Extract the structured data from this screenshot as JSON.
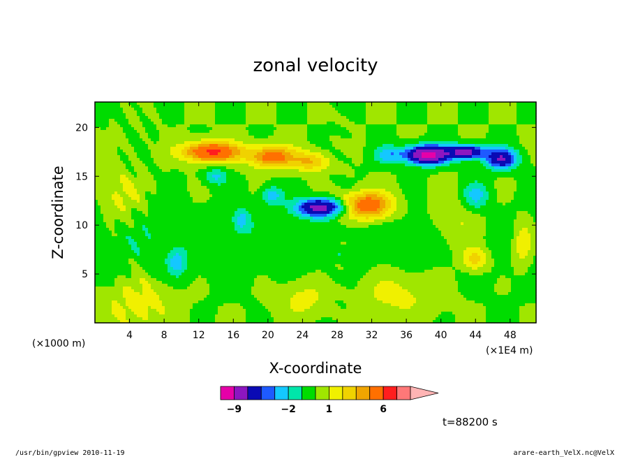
{
  "chart_data": {
    "type": "heatmap",
    "title": "zonal velocity",
    "xlabel": "X-coordinate",
    "ylabel": "Z-coordinate",
    "x_unit": "(×1E4 m)",
    "y_unit": "(×1000 m)",
    "xlim": [
      0,
      51
    ],
    "ylim": [
      0,
      22.6
    ],
    "x_ticks": [
      4,
      8,
      12,
      16,
      20,
      24,
      28,
      32,
      36,
      40,
      44,
      48
    ],
    "y_ticks": [
      5,
      10,
      15,
      20
    ],
    "time_label": "t=88200 s",
    "colorbar": {
      "levels": [
        -12,
        -9,
        -6,
        -4,
        -3,
        -2,
        -1,
        0,
        1,
        2,
        3,
        4,
        6,
        8,
        10
      ],
      "colors": [
        "#e600a8",
        "#8c16c0",
        "#0a0ab4",
        "#1e5aff",
        "#14c8ff",
        "#00e6aa",
        "#00dc00",
        "#a0e600",
        "#f0f000",
        "#f0d200",
        "#f0a500",
        "#ff7000",
        "#ff1e1e",
        "#ff7878",
        "#ffb4b4"
      ],
      "labels": [
        {
          "value": -9,
          "text": "−9"
        },
        {
          "value": -2,
          "text": "−2"
        },
        {
          "value": 1,
          "text": "1"
        },
        {
          "value": 6,
          "text": "6"
        }
      ]
    },
    "features": [
      {
        "x": 13.5,
        "z": 17.5,
        "sx": 3.2,
        "sz": 1.0,
        "amp": 6.5
      },
      {
        "x": 20.5,
        "z": 17.0,
        "sx": 2.6,
        "sz": 1.1,
        "amp": 5.0
      },
      {
        "x": 25.0,
        "z": 16.5,
        "sx": 2.0,
        "sz": 1.0,
        "amp": 3.0
      },
      {
        "x": 31.5,
        "z": 12.0,
        "sx": 2.8,
        "sz": 1.4,
        "amp": 5.5
      },
      {
        "x": 26.0,
        "z": 11.8,
        "sx": 2.5,
        "sz": 0.9,
        "amp": -7.0
      },
      {
        "x": 20.5,
        "z": 13.0,
        "sx": 1.2,
        "sz": 1.0,
        "amp": -2.5
      },
      {
        "x": 38.5,
        "z": 17.2,
        "sx": 2.4,
        "sz": 0.9,
        "amp": -10.0
      },
      {
        "x": 43.0,
        "z": 17.5,
        "sx": 2.0,
        "sz": 0.7,
        "amp": -7.0
      },
      {
        "x": 47.0,
        "z": 16.8,
        "sx": 1.8,
        "sz": 1.0,
        "amp": -6.0
      },
      {
        "x": 34.0,
        "z": 17.2,
        "sx": 1.8,
        "sz": 0.9,
        "amp": -2.5
      },
      {
        "x": 44.0,
        "z": 13.0,
        "sx": 1.5,
        "sz": 1.4,
        "amp": -2.5
      },
      {
        "x": 14.0,
        "z": 15.0,
        "sx": 1.3,
        "sz": 0.9,
        "amp": -2.2
      },
      {
        "x": 17.0,
        "z": 10.5,
        "sx": 1.0,
        "sz": 1.2,
        "amp": -2.2
      },
      {
        "x": 9.5,
        "z": 6.2,
        "sx": 1.0,
        "sz": 1.3,
        "amp": -2.3
      },
      {
        "x": 44.0,
        "z": 6.5,
        "sx": 1.5,
        "sz": 1.2,
        "amp": 2.8
      },
      {
        "x": 49.5,
        "z": 8.0,
        "sx": 1.2,
        "sz": 2.5,
        "amp": 2.2
      },
      {
        "x": 5.0,
        "z": 2.0,
        "sx": 4.0,
        "sz": 2.5,
        "amp": 1.6
      },
      {
        "x": 35.0,
        "z": 3.0,
        "sx": 5.0,
        "sz": 2.5,
        "amp": 1.4
      },
      {
        "x": 24.0,
        "z": 2.5,
        "sx": 3.0,
        "sz": 2.0,
        "amp": 1.4
      },
      {
        "x": 3.0,
        "z": 13.0,
        "sx": 2.0,
        "sz": 2.5,
        "amp": 1.5
      },
      {
        "x": 42.0,
        "z": 10.0,
        "sx": 3.0,
        "sz": 3.0,
        "amp": 1.4
      }
    ]
  },
  "footer": {
    "left": "/usr/bin/gpview   2010-11-19",
    "right": "arare-earth_VelX.nc@VelX"
  }
}
